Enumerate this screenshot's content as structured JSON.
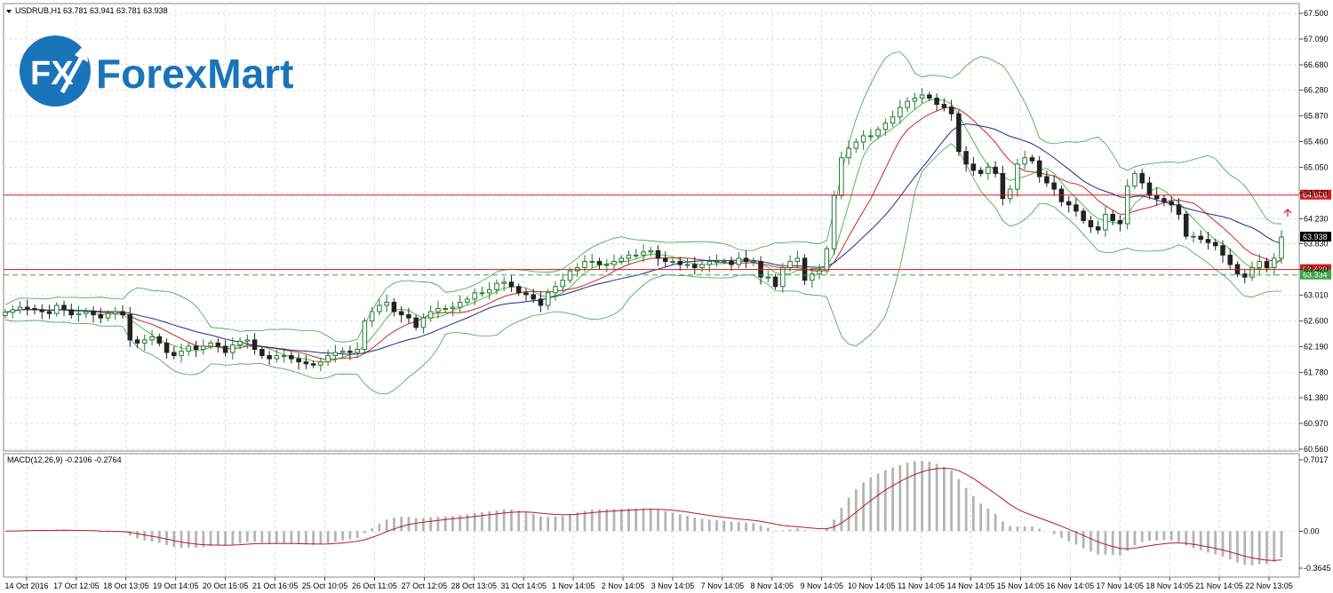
{
  "header": {
    "symbol_label": "USDRUB,H1",
    "ohlc_label": "63.781 63.941 63.781 63.938"
  },
  "logo": {
    "mark_text": "FX",
    "word": "ForexMart"
  },
  "macd": {
    "label": "MACD(12,26,9) -0.2106 -0.2764",
    "y_labels": [
      "0.7017",
      "0.00",
      "-0.3645"
    ]
  },
  "price_axis": {
    "labels": [
      "67.500",
      "67.090",
      "66.680",
      "66.280",
      "65.870",
      "65.460",
      "65.050",
      "64.640",
      "64.230",
      "63.830",
      "63.420",
      "63.010",
      "62.600",
      "62.190",
      "61.780",
      "61.380",
      "60.970",
      "60.560"
    ]
  },
  "markers": {
    "resistance": {
      "value": 64.606,
      "label": "64.606",
      "color": "#d11b1b"
    },
    "current": {
      "value": 63.938,
      "label": "63.938",
      "color": "#000000"
    },
    "support": {
      "value": 63.42,
      "label": "63.420",
      "color": "#d11b1b"
    },
    "dashed": {
      "value": 63.334,
      "label": "63.334",
      "color": "#3aa34a"
    }
  },
  "time_axis": {
    "labels": [
      "14 Oct 2016",
      "17 Oct 12:05",
      "18 Oct 13:05",
      "19 Oct 14:05",
      "20 Oct 15:05",
      "21 Oct 16:05",
      "25 Oct 10:05",
      "26 Oct 11:05",
      "27 Oct 12:05",
      "28 Oct 13:05",
      "31 Oct 14:05",
      "1 Nov 14:05",
      "2 Nov 14:05",
      "3 Nov 14:05",
      "7 Nov 14:05",
      "8 Nov 14:05",
      "9 Nov 14:05",
      "10 Nov 14:05",
      "11 Nov 14:05",
      "14 Nov 14:05",
      "15 Nov 14:05",
      "16 Nov 14:05",
      "17 Nov 14:05",
      "18 Nov 14:05",
      "21 Nov 14:05",
      "22 Nov 13:05"
    ]
  },
  "colors": {
    "bull_candle": "#1f7a2e",
    "bear_candle": "#222222",
    "bands": "#3aa34a",
    "ma_fast": "#46c046",
    "ma_mid": "#c62828",
    "ma_slow": "#1c2a8a",
    "macd_hist": "#b3b3b3",
    "macd_signal": "#b71c1c",
    "grid": "#cfcfcf"
  },
  "chart_data": {
    "type": "candlestick",
    "symbol": "USDRUB",
    "timeframe": "H1",
    "ylim": [
      60.56,
      67.5
    ],
    "y_ticks": [
      67.5,
      67.09,
      66.68,
      66.28,
      65.87,
      65.46,
      65.05,
      64.64,
      64.23,
      63.83,
      63.42,
      63.01,
      62.6,
      62.19,
      61.78,
      61.38,
      60.97,
      60.56
    ],
    "closes": [
      62.74,
      62.78,
      62.82,
      62.8,
      62.78,
      62.75,
      62.72,
      62.85,
      62.78,
      62.7,
      62.72,
      62.75,
      62.7,
      62.65,
      62.72,
      62.75,
      62.7,
      62.3,
      62.25,
      62.3,
      62.35,
      62.25,
      62.1,
      62.05,
      62.12,
      62.2,
      62.15,
      62.2,
      62.25,
      62.2,
      62.1,
      62.22,
      62.28,
      62.3,
      62.15,
      62.05,
      62.0,
      62.05,
      62.05,
      62.0,
      61.95,
      61.92,
      61.9,
      61.95,
      62.05,
      62.1,
      62.12,
      62.1,
      62.15,
      62.6,
      62.75,
      62.85,
      62.9,
      62.75,
      62.7,
      62.65,
      62.5,
      62.65,
      62.75,
      62.8,
      62.8,
      62.82,
      62.9,
      62.95,
      63.05,
      63.05,
      63.1,
      63.2,
      63.22,
      63.15,
      63.05,
      63.02,
      62.95,
      62.85,
      63.05,
      63.15,
      63.25,
      63.4,
      63.45,
      63.55,
      63.55,
      63.5,
      63.5,
      63.55,
      63.6,
      63.65,
      63.65,
      63.7,
      63.72,
      63.6,
      63.55,
      63.55,
      63.5,
      63.5,
      63.45,
      63.5,
      63.55,
      63.55,
      63.55,
      63.5,
      63.6,
      63.55,
      63.55,
      63.3,
      63.3,
      63.15,
      63.45,
      63.55,
      63.6,
      63.25,
      63.35,
      63.4,
      63.75,
      64.6,
      65.2,
      65.35,
      65.45,
      65.55,
      65.55,
      65.65,
      65.75,
      65.85,
      66.0,
      66.1,
      66.15,
      66.2,
      66.15,
      66.05,
      66.0,
      65.9,
      65.3,
      65.1,
      65.0,
      64.95,
      65.05,
      64.95,
      64.55,
      64.7,
      65.1,
      65.2,
      65.15,
      64.9,
      64.8,
      64.7,
      64.5,
      64.45,
      64.35,
      64.2,
      64.1,
      64.05,
      64.3,
      64.2,
      64.15,
      64.75,
      64.95,
      64.8,
      64.6,
      64.55,
      64.5,
      64.45,
      64.3,
      63.95,
      63.95,
      63.9,
      63.85,
      63.8,
      63.65,
      63.5,
      63.35,
      63.3,
      63.45,
      63.55,
      63.45,
      63.6,
      63.938
    ],
    "macd": {
      "ylim": [
        -0.3645,
        0.7017
      ]
    }
  }
}
